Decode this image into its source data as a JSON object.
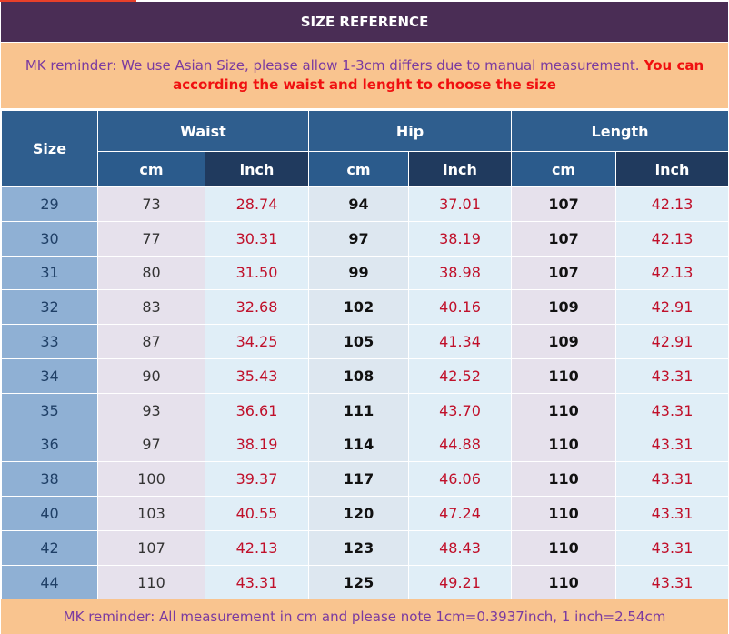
{
  "title": "SIZE REFERENCE",
  "reminder_top": {
    "purple": "MK reminder: We use Asian Size, please allow 1-3cm differs due to manual measurement.",
    "red": " You can according the waist and lenght to choose the size"
  },
  "table": {
    "size_header": "Size",
    "groups": [
      "Waist",
      "Hip",
      "Length"
    ],
    "units": [
      "cm",
      "inch",
      "cm",
      "inch",
      "cm",
      "inch"
    ],
    "rows": [
      [
        "29",
        "73",
        "28.74",
        "94",
        "37.01",
        "107",
        "42.13"
      ],
      [
        "30",
        "77",
        "30.31",
        "97",
        "38.19",
        "107",
        "42.13"
      ],
      [
        "31",
        "80",
        "31.50",
        "99",
        "38.98",
        "107",
        "42.13"
      ],
      [
        "32",
        "83",
        "32.68",
        "102",
        "40.16",
        "109",
        "42.91"
      ],
      [
        "33",
        "87",
        "34.25",
        "105",
        "41.34",
        "109",
        "42.91"
      ],
      [
        "34",
        "90",
        "35.43",
        "108",
        "42.52",
        "110",
        "43.31"
      ],
      [
        "35",
        "93",
        "36.61",
        "111",
        "43.70",
        "110",
        "43.31"
      ],
      [
        "36",
        "97",
        "38.19",
        "114",
        "44.88",
        "110",
        "43.31"
      ],
      [
        "38",
        "100",
        "39.37",
        "117",
        "46.06",
        "110",
        "43.31"
      ],
      [
        "40",
        "103",
        "40.55",
        "120",
        "47.24",
        "110",
        "43.31"
      ],
      [
        "42",
        "107",
        "42.13",
        "123",
        "48.43",
        "110",
        "43.31"
      ],
      [
        "44",
        "110",
        "43.31",
        "125",
        "49.21",
        "110",
        "43.31"
      ]
    ]
  },
  "reminder_bottom": "MK reminder: All measurement in cm and please note 1cm=0.3937inch, 1 inch=2.54cm",
  "colors": {
    "title_bg": "#4a2d55",
    "reminder_bg": "#f9c48f",
    "header_blue": "#2f5e8e",
    "header_dark": "#203a5e",
    "inch_text": "#c0102a",
    "reminder_purple": "#7a3aa0",
    "reminder_red": "#f01010"
  }
}
